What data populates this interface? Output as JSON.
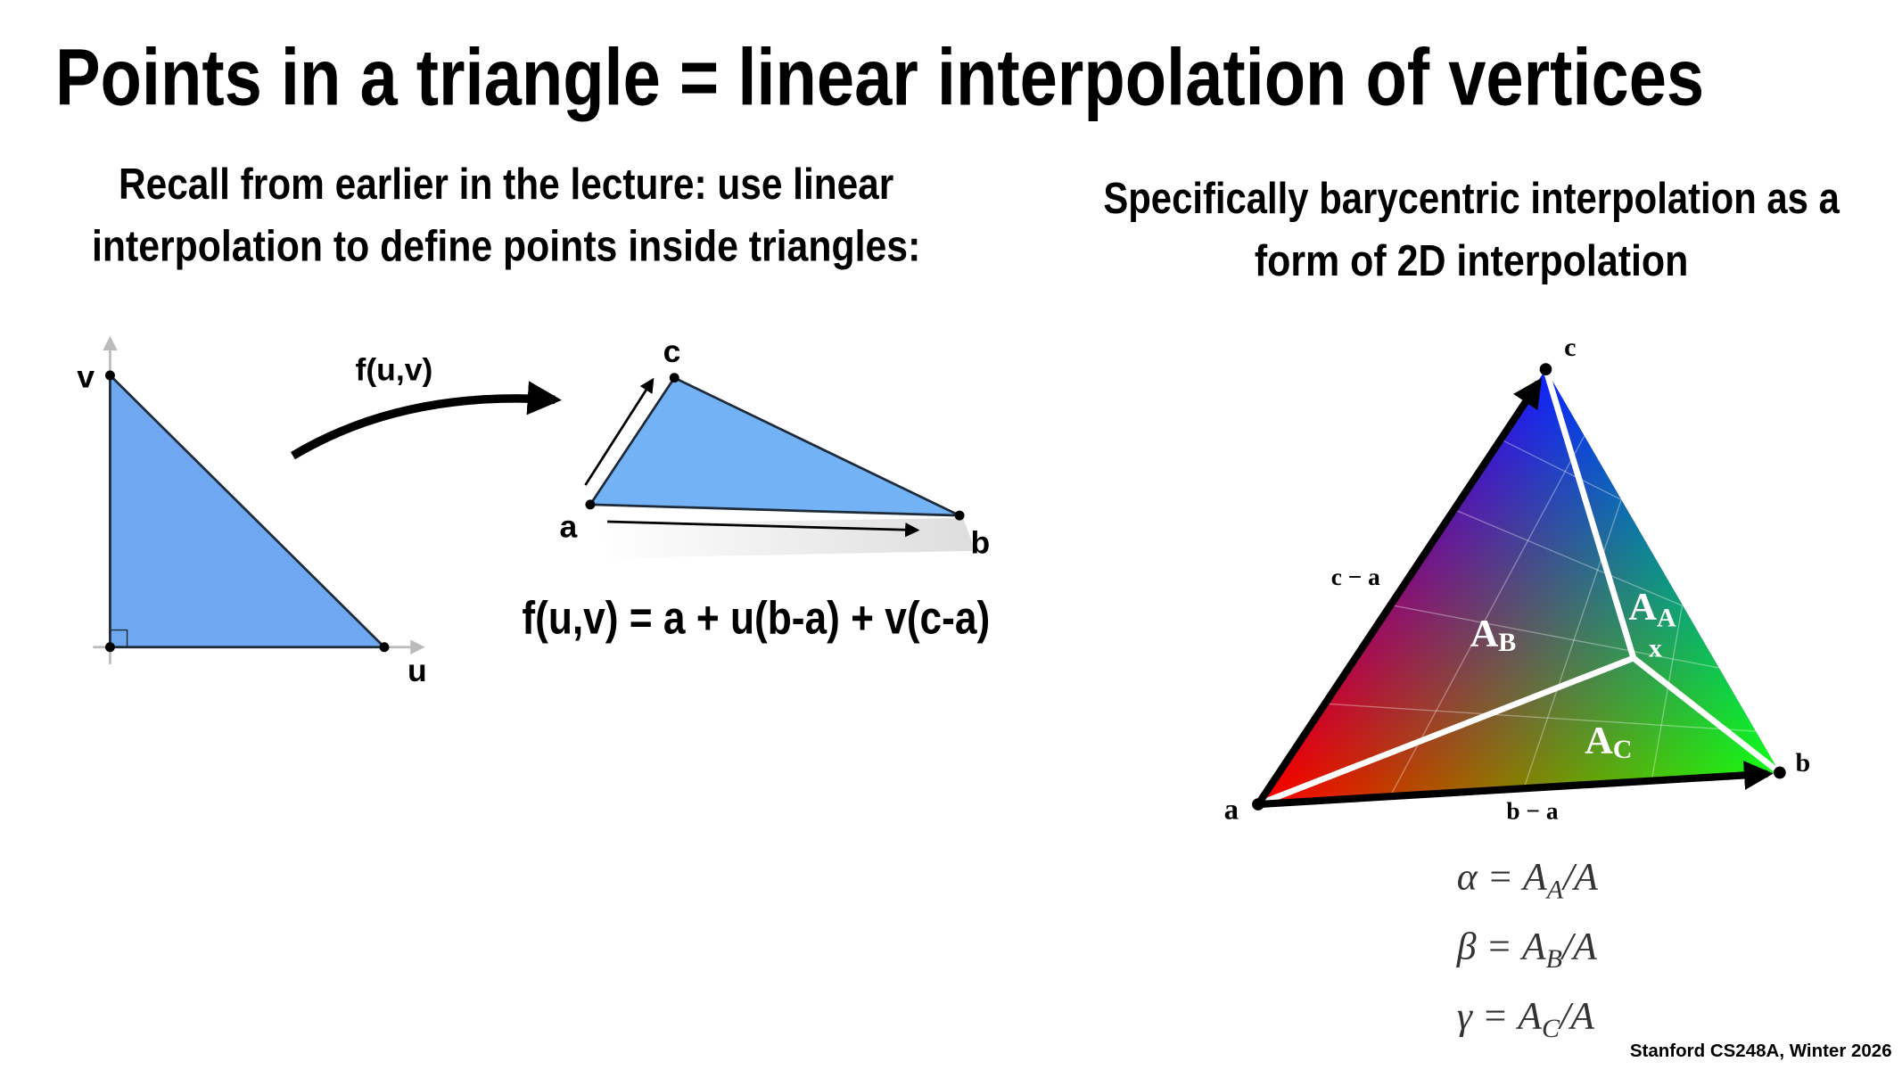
{
  "title": "Points in a triangle = linear interpolation of vertices",
  "left": {
    "heading": [
      "Recall from earlier in the lecture: use linear",
      "interpolation to define points inside triangles:"
    ],
    "uv_labels": {
      "v": "v",
      "u": "u"
    },
    "map_label": "f(u,v)",
    "vertex_labels": {
      "a": "a",
      "b": "b",
      "c": "c"
    },
    "formula": "f(u,v) = a + u(b-a) + v(c-a)"
  },
  "right": {
    "heading": [
      "Specifically barycentric interpolation as a",
      "form of 2D interpolation"
    ],
    "vertex_labels": {
      "a": "a",
      "b": "b",
      "c": "c"
    },
    "edge_labels": {
      "c_minus_a": "c − a",
      "b_minus_a": "b − a"
    },
    "point_label": "x",
    "areas": [
      {
        "main": "A",
        "sub": "A"
      },
      {
        "main": "A",
        "sub": "B"
      },
      {
        "main": "A",
        "sub": "C"
      }
    ],
    "equations": [
      {
        "lhs": "α =",
        "main": "A",
        "sub": "A",
        "tail": "/A"
      },
      {
        "lhs": "β =",
        "main": "A",
        "sub": "B",
        "tail": "/A"
      },
      {
        "lhs": "γ =",
        "main": "A",
        "sub": "C",
        "tail": "/A"
      }
    ]
  },
  "footer": "Stanford CS248A, Winter 2026"
}
